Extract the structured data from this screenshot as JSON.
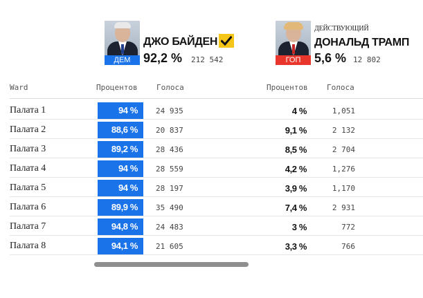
{
  "candidates": [
    {
      "name": "ДЖО БАЙДЕН",
      "party": "ДЕМ",
      "percent": "92,2 %",
      "votes": "212 542",
      "winner": true,
      "color": "#1a73e8",
      "photo_icon": "candidate-photo"
    },
    {
      "incumbent_label": "ДЕЙСТВУЮЩИЙ",
      "name": "ДОНАЛЬД ТРАМП",
      "party": "ГОП",
      "percent": "5,6 %",
      "votes": "12 802",
      "winner": false,
      "color": "#e8362d",
      "photo_icon": "candidate-photo"
    }
  ],
  "table": {
    "headers": {
      "ward": "Ward",
      "biden_percent": "Процентов",
      "biden_votes": "Голоса",
      "trump_percent": "Процентов",
      "trump_votes": "Голоса"
    },
    "rows": [
      {
        "ward": "Палата 1",
        "biden_pct": "94 %",
        "biden_votes": "24 935",
        "trump_pct": "4 %",
        "trump_votes": "1,051"
      },
      {
        "ward": "Палата 2",
        "biden_pct": "88,6 %",
        "biden_votes": "20 837",
        "trump_pct": "9,1 %",
        "trump_votes": "2 132"
      },
      {
        "ward": "Палата 3",
        "biden_pct": "89,2 %",
        "biden_votes": "28 436",
        "trump_pct": "8,5 %",
        "trump_votes": "2 704"
      },
      {
        "ward": "Палата 4",
        "biden_pct": "94 %",
        "biden_votes": "28 559",
        "trump_pct": "4,2 %",
        "trump_votes": "1,276"
      },
      {
        "ward": "Палата 5",
        "biden_pct": "94 %",
        "biden_votes": "28 197",
        "trump_pct": "3,9 %",
        "trump_votes": "1,170"
      },
      {
        "ward": "Палата 6",
        "biden_pct": "89,9 %",
        "biden_votes": "35 490",
        "trump_pct": "7,4 %",
        "trump_votes": "2 931"
      },
      {
        "ward": "Палата 7",
        "biden_pct": "94,8 %",
        "biden_votes": "24 483",
        "trump_pct": "3 %",
        "trump_votes": "772"
      },
      {
        "ward": "Палата 8",
        "biden_pct": "94,1 %",
        "biden_votes": "21 605",
        "trump_pct": "3,3 %",
        "trump_votes": "766"
      }
    ]
  },
  "icons": {
    "winner": "check-icon"
  },
  "colors": {
    "winner_badge": "#f5c518",
    "dem": "#1a73e8",
    "gop": "#e8362d"
  }
}
